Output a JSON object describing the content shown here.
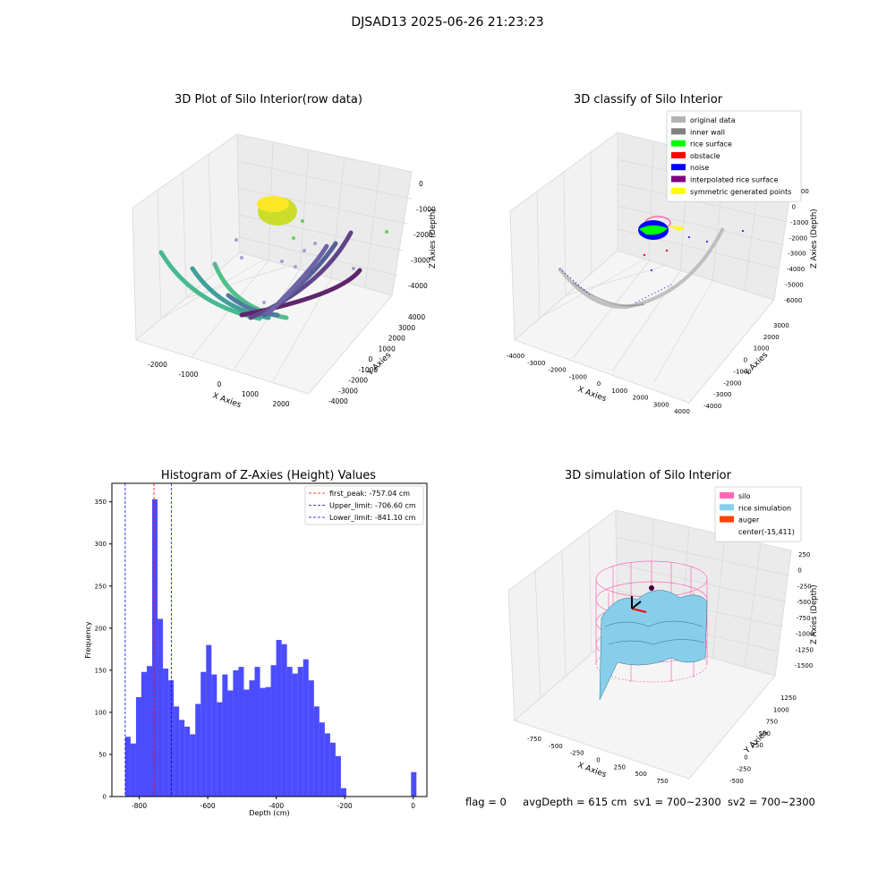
{
  "figure": {
    "suptitle": "DJSAD13 2025-06-26 21:23:23",
    "footer": {
      "flag": "flag = 0",
      "avg_depth": "avgDepth = 615 cm",
      "sv1": "sv1 = 700~2300",
      "sv2": "sv2 = 700~2300"
    }
  },
  "panels": {
    "raw": {
      "title": "3D Plot of Silo Interior(row data)",
      "xlabel": "X Axies",
      "ylabel": "Y Axies",
      "zlabel": "Z Axies (Depth)",
      "xticks": [
        "-2000",
        "-1000",
        "0",
        "1000",
        "2000"
      ],
      "yticks": [
        "-4000",
        "-3000",
        "-2000",
        "-1000",
        "0",
        "1000",
        "2000",
        "3000",
        "4000"
      ],
      "zticks": [
        "0",
        "-1000",
        "-2000",
        "-3000",
        "-4000"
      ]
    },
    "classify": {
      "title": "3D classify of Silo Interior",
      "xlabel": "X Axies",
      "ylabel": "Y Axies",
      "zlabel": "Z Axies (Depth)",
      "xticks": [
        "-4000",
        "-3000",
        "-2000",
        "-1000",
        "0",
        "1000",
        "2000",
        "3000",
        "4000"
      ],
      "yticks": [
        "-4000",
        "-3000",
        "-2000",
        "-1000",
        "0",
        "1000",
        "2000",
        "3000"
      ],
      "zticks": [
        "1000",
        "0",
        "-1000",
        "-2000",
        "-3000",
        "-4000",
        "-5000",
        "-6000"
      ],
      "legend": [
        {
          "label": "original data",
          "color": "#b3b3b3"
        },
        {
          "label": "inner wall",
          "color": "#808080"
        },
        {
          "label": "rice surface",
          "color": "#00ff00"
        },
        {
          "label": "obstacle",
          "color": "#ff0000"
        },
        {
          "label": "noise",
          "color": "#0000ff"
        },
        {
          "label": "interpolated rice surface",
          "color": "#800080"
        },
        {
          "label": "symmetric generated points",
          "color": "#ffff00"
        }
      ]
    },
    "simulation": {
      "title": "3D simulation of Silo Interior",
      "xlabel": "X Axies",
      "ylabel": "Y Axies",
      "zlabel": "Z Axies (Depth)",
      "xticks": [
        "-750",
        "-500",
        "-250",
        "0",
        "250",
        "500",
        "750"
      ],
      "yticks": [
        "-500",
        "-250",
        "0",
        "250",
        "500",
        "750",
        "1000",
        "1250"
      ],
      "zticks": [
        "250",
        "0",
        "-250",
        "-500",
        "-750",
        "-1000",
        "-1250",
        "-1500"
      ],
      "legend": [
        {
          "label": "silo",
          "color": "#ff69b4"
        },
        {
          "label": "rice simulation",
          "color": "#87ceeb"
        },
        {
          "label": "auger",
          "color": "#ff4500"
        },
        {
          "label": "center(-15,411)",
          "color": "none"
        }
      ]
    }
  },
  "chart_data": {
    "type": "bar",
    "title": "Histogram of Z-Axies (Height) Values",
    "xlabel": "Depth (cm)",
    "ylabel": "Frequency",
    "xlim": [
      -880,
      40
    ],
    "ylim": [
      0,
      372
    ],
    "xticks": [
      -800,
      -600,
      -400,
      -200,
      0
    ],
    "yticks": [
      0,
      50,
      100,
      150,
      200,
      250,
      300,
      350
    ],
    "bin_start": -841.1,
    "bin_width": 15.75,
    "bin_counts": [
      71,
      63,
      118,
      148,
      155,
      353,
      211,
      152,
      138,
      107,
      91,
      83,
      74,
      110,
      148,
      180,
      145,
      112,
      145,
      126,
      150,
      154,
      127,
      138,
      154,
      129,
      130,
      156,
      186,
      181,
      154,
      146,
      154,
      163,
      138,
      107,
      88,
      75,
      64,
      48,
      10,
      0,
      0,
      0,
      0,
      0,
      0,
      0,
      0,
      0,
      0,
      0,
      0,
      29
    ],
    "vlines": [
      {
        "label": "first_peak: -757.04 cm",
        "x": -757.04,
        "color": "#ff0000"
      },
      {
        "label": "Upper_limit: -706.60 cm",
        "x": -706.6,
        "color": "#0000ff"
      },
      {
        "label": "Lower_limit: -841.10 cm",
        "x": -841.1,
        "color": "#0000ff"
      }
    ],
    "bar_color": "#0000ff"
  }
}
